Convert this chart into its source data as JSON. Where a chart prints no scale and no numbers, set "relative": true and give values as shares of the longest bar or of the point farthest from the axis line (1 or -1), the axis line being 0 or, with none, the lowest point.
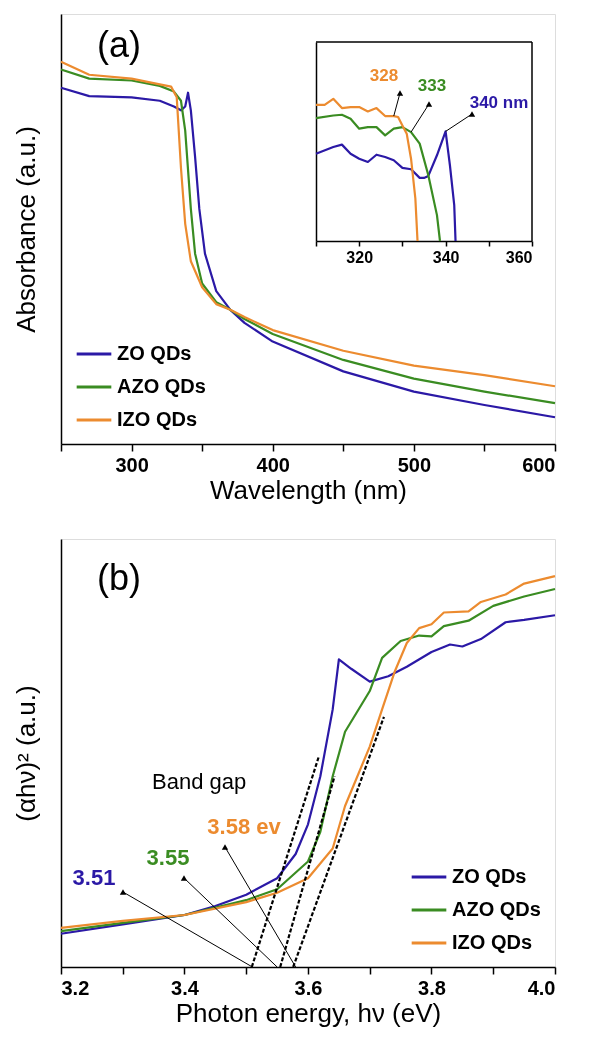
{
  "chart_data": [
    {
      "type": "line",
      "relative": true,
      "xlabel": "Wavelength (nm)",
      "ylabel": "Absorbance (a.u.)",
      "annotations": [
        "(a)"
      ],
      "xlim": [
        250,
        600
      ],
      "xticks": [
        {
          "value": 250,
          "label": null
        },
        300,
        {
          "value": 350,
          "label": null
        },
        400,
        {
          "value": 450,
          "label": null
        },
        500,
        {
          "value": 550,
          "label": null
        },
        600
      ],
      "legend": "bottom left",
      "grid": false,
      "series": [
        {
          "name": "ZO QDs",
          "color": "#2b19a6",
          "x": [
            250,
            270,
            300,
            320,
            330,
            335,
            338,
            340,
            342,
            345,
            348,
            352,
            360,
            370,
            380,
            400,
            450,
            500,
            550,
            600
          ],
          "values": [
            0.932,
            0.91,
            0.907,
            0.898,
            0.883,
            0.873,
            0.883,
            0.919,
            0.873,
            0.751,
            0.615,
            0.498,
            0.4,
            0.351,
            0.317,
            0.268,
            0.19,
            0.137,
            0.102,
            0.07
          ]
        },
        {
          "name": "AZO QDs",
          "color": "#3a8c22",
          "x": [
            250,
            270,
            300,
            320,
            330,
            335,
            338,
            342,
            345,
            350,
            360,
            370,
            380,
            400,
            450,
            500,
            550,
            600
          ],
          "values": [
            0.98,
            0.956,
            0.951,
            0.937,
            0.922,
            0.898,
            0.82,
            0.615,
            0.498,
            0.42,
            0.371,
            0.351,
            0.327,
            0.288,
            0.22,
            0.171,
            0.137,
            0.107
          ]
        },
        {
          "name": "IZO QDs",
          "color": "#ec8b2f",
          "x": [
            250,
            270,
            300,
            320,
            328,
            332,
            335,
            338,
            342,
            350,
            360,
            370,
            380,
            400,
            450,
            500,
            550,
            600
          ],
          "values": [
            1,
            0.966,
            0.956,
            0.941,
            0.935,
            0.907,
            0.722,
            0.576,
            0.478,
            0.41,
            0.366,
            0.351,
            0.332,
            0.298,
            0.244,
            0.205,
            0.18,
            0.151
          ]
        }
      ]
    },
    {
      "type": "line",
      "relative": true,
      "xlim": [
        310,
        360
      ],
      "xticks": [
        {
          "value": 310,
          "label": null
        },
        320,
        {
          "value": 330,
          "label": null
        },
        340,
        {
          "value": 350,
          "label": null
        },
        360
      ],
      "annotations": [
        {
          "text": "340 nm",
          "x": 340,
          "y": 0.771
        },
        {
          "text": "333",
          "x": 332,
          "y": 0.766
        },
        {
          "text": "328",
          "x": 328,
          "y": 0.879
        }
      ],
      "series": [
        {
          "color": "#2b19a6",
          "x": [
            310,
            314,
            316,
            318,
            320,
            322,
            324,
            326,
            328,
            330,
            332,
            334,
            335,
            336,
            338,
            340,
            341,
            342,
            342.3
          ],
          "values": [
            0.614,
            0.661,
            0.678,
            0.614,
            0.579,
            0.556,
            0.607,
            0.591,
            0.568,
            0.514,
            0.505,
            0.444,
            0.444,
            0.458,
            0.603,
            0.771,
            0.533,
            0.252,
            0
          ]
        },
        {
          "color": "#3a8c22",
          "x": [
            310,
            314,
            316,
            318,
            320,
            322,
            324,
            326,
            328,
            330,
            332,
            334,
            336,
            338,
            338.7
          ],
          "values": [
            0.864,
            0.883,
            0.888,
            0.86,
            0.79,
            0.801,
            0.801,
            0.743,
            0.79,
            0.801,
            0.766,
            0.685,
            0.463,
            0.182,
            0
          ]
        },
        {
          "color": "#ec8b2f",
          "x": [
            310,
            312,
            314,
            316,
            318,
            320,
            322,
            324,
            326,
            328,
            329,
            330,
            331,
            332,
            333,
            333.5
          ],
          "values": [
            0.958,
            0.958,
            1,
            0.935,
            0.942,
            0.942,
            0.911,
            0.935,
            0.879,
            0.879,
            0.872,
            0.813,
            0.755,
            0.579,
            0.299,
            0
          ]
        }
      ]
    },
    {
      "type": "line",
      "relative": true,
      "xlabel": "Photon energy, hν (eV)",
      "ylabel": "(αhν)² (a.u.)",
      "annotations": [
        "(b)",
        "Band gap",
        {
          "text": "3.51",
          "x": 3.51,
          "y": 0
        },
        {
          "text": "3.55",
          "x": 3.55,
          "y": 0
        },
        {
          "text": "3.58 ev",
          "x": 3.58,
          "y": 0
        }
      ],
      "xlim": [
        3.2,
        4.0
      ],
      "xticks": [
        3.2,
        {
          "value": 3.3,
          "label": null
        },
        3.4,
        {
          "value": 3.5,
          "label": null
        },
        3.6,
        {
          "value": 3.7,
          "label": null
        },
        3.8,
        {
          "value": 3.9,
          "label": null
        },
        {
          "value": 4.0,
          "label": "4.0"
        }
      ],
      "legend": "bottom right",
      "grid": false,
      "series": [
        {
          "name": "ZO QDs",
          "color": "#2b19a6",
          "x": [
            3.2,
            3.3,
            3.4,
            3.45,
            3.5,
            3.55,
            3.58,
            3.6,
            3.62,
            3.64,
            3.65,
            3.67,
            3.7,
            3.73,
            3.76,
            3.8,
            3.83,
            3.85,
            3.88,
            3.92,
            3.95,
            4.0
          ],
          "values": [
            0.085,
            0.109,
            0.133,
            0.156,
            0.185,
            0.227,
            0.289,
            0.365,
            0.488,
            0.659,
            0.787,
            0.763,
            0.73,
            0.744,
            0.768,
            0.806,
            0.825,
            0.82,
            0.839,
            0.882,
            0.888,
            0.9
          ]
        },
        {
          "name": "AZO QDs",
          "color": "#3a8c22",
          "x": [
            3.2,
            3.3,
            3.4,
            3.5,
            3.55,
            3.6,
            3.62,
            3.64,
            3.66,
            3.7,
            3.72,
            3.75,
            3.78,
            3.8,
            3.82,
            3.86,
            3.9,
            3.95,
            4.0
          ],
          "values": [
            0.092,
            0.113,
            0.133,
            0.171,
            0.199,
            0.27,
            0.346,
            0.488,
            0.602,
            0.706,
            0.791,
            0.834,
            0.848,
            0.846,
            0.872,
            0.886,
            0.924,
            0.948,
            0.967
          ]
        },
        {
          "name": "IZO QDs",
          "color": "#ec8b2f",
          "x": [
            3.2,
            3.3,
            3.4,
            3.5,
            3.55,
            3.6,
            3.64,
            3.66,
            3.7,
            3.72,
            3.74,
            3.76,
            3.78,
            3.8,
            3.82,
            3.86,
            3.88,
            3.92,
            3.95,
            4.0
          ],
          "values": [
            0.1,
            0.118,
            0.133,
            0.166,
            0.19,
            0.227,
            0.303,
            0.412,
            0.564,
            0.659,
            0.754,
            0.829,
            0.867,
            0.877,
            0.907,
            0.91,
            0.934,
            0.953,
            0.981,
            1
          ]
        },
        {
          "type": "line",
          "color": "#000000",
          "line_style": "dashed",
          "x": [
            3.509,
            3.617
          ],
          "values": [
            0,
            0.536
          ]
        },
        {
          "type": "line",
          "color": "#000000",
          "line_style": "dashed",
          "x": [
            3.555,
            3.643
          ],
          "values": [
            0,
            0.488
          ]
        },
        {
          "type": "line",
          "color": "#000000",
          "line_style": "dashed",
          "x": [
            3.576,
            3.723
          ],
          "values": [
            0,
            0.64
          ]
        }
      ]
    }
  ]
}
